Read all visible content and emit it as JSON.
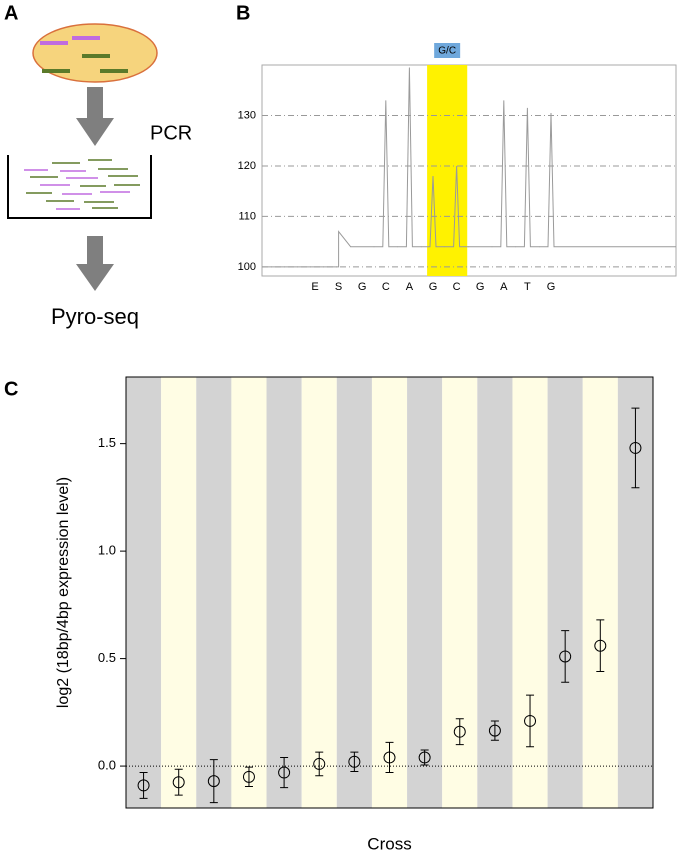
{
  "panels": [
    "A",
    "B",
    "C"
  ],
  "diagram": {
    "step1": "PCR",
    "step2": "Pyro-seq"
  },
  "chart_data": [
    {
      "type": "pyrogram",
      "categories": [
        "E",
        "S",
        "G",
        "C",
        "A",
        "G",
        "C",
        "G",
        "A",
        "T",
        "G"
      ],
      "values": [
        100,
        107,
        104,
        133,
        139.5,
        118,
        120,
        104,
        133,
        131.5,
        130.5
      ],
      "color": "#9a9a9a",
      "ylim": [
        98.2,
        140
      ],
      "yticks": [
        100,
        110,
        120,
        130
      ],
      "grid": true,
      "annotations": [
        {
          "text": "G/C",
          "color": "#6fa8dc",
          "highlight": "#fff200"
        }
      ]
    },
    {
      "type": "errorpoint",
      "x_label": "Cross",
      "y_label": "log2 (18bp/4bp expression level)",
      "categories": [
        null,
        null,
        null,
        null,
        null,
        null,
        null,
        null,
        null,
        null,
        null,
        null,
        null,
        null,
        null
      ],
      "values": [
        -0.09,
        -0.075,
        -0.07,
        -0.05,
        -0.03,
        0.01,
        0.02,
        0.04,
        0.04,
        0.16,
        0.165,
        0.21,
        0.51,
        0.56,
        1.48
      ],
      "errors": [
        0.06,
        0.06,
        0.1,
        0.045,
        0.07,
        0.055,
        0.045,
        0.07,
        0.035,
        0.06,
        0.045,
        0.12,
        0.12,
        0.12,
        0.185
      ],
      "band_colors": [
        "#d3d3d3",
        "#fffde4"
      ],
      "reference_line": 0,
      "ylim": [
        -0.195,
        1.81
      ],
      "yticks": [
        {
          "value": 0,
          "label": "0.0"
        },
        0.5,
        {
          "value": 1,
          "label": "1.0"
        },
        1.5
      ]
    }
  ]
}
